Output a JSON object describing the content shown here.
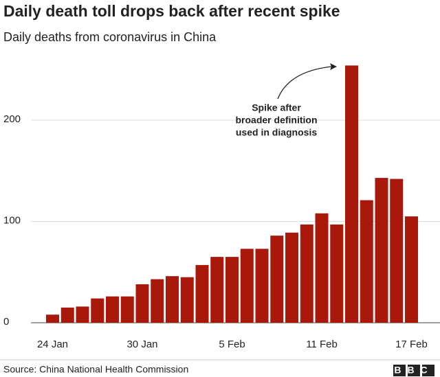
{
  "chart_data": {
    "type": "bar",
    "title": "Daily death toll drops back after recent spike",
    "subtitle": "Daily deaths from coronavirus in China",
    "categories": [
      "24 Jan",
      null,
      null,
      null,
      null,
      null,
      "30 Jan",
      null,
      null,
      null,
      null,
      null,
      "5 Feb",
      null,
      null,
      null,
      null,
      null,
      "11 Feb",
      null,
      null,
      null,
      null,
      null,
      "17 Feb"
    ],
    "values": [
      8,
      15,
      16,
      24,
      26,
      26,
      38,
      43,
      46,
      45,
      57,
      65,
      65,
      73,
      73,
      86,
      89,
      97,
      108,
      97,
      254,
      121,
      143,
      142,
      105
    ],
    "color": "#a8190b",
    "ylim": [
      0,
      260
    ],
    "yticks": [
      0,
      100,
      200
    ],
    "grid": true,
    "annotation": [
      "Spike after",
      "broader definition",
      "used in diagnosis"
    ],
    "source": "Source: China National Health Commission",
    "logo": "BBC"
  }
}
